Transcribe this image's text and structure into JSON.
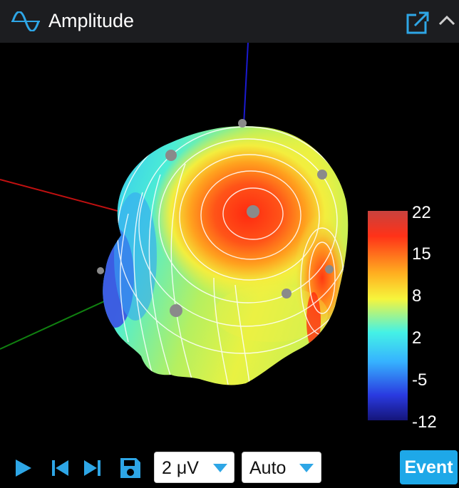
{
  "window": {
    "title": "Amplitude",
    "icon": "waveform-icon",
    "popout_icon": "external-link-icon",
    "collapse_icon": "chevron-up-icon"
  },
  "colorbar": {
    "labels": [
      "22",
      "15",
      "8",
      "2",
      "-5",
      "-12"
    ],
    "min": -12,
    "max": 22,
    "colors": [
      "#c83a3a",
      "#ff3b14",
      "#ffc21e",
      "#f6f53c",
      "#3ef0ec",
      "#3da8ff",
      "#2633d6",
      "#1a1a8c"
    ]
  },
  "toolbar": {
    "play_icon": "play-icon",
    "prev_icon": "skip-previous-icon",
    "next_icon": "skip-next-icon",
    "save_icon": "save-icon",
    "scale_select": "2 μV",
    "mode_select": "Auto",
    "event_label": "Event",
    "accent": "#1ea8e8"
  },
  "axes": {
    "z_color": "#1a1ad0",
    "x_color": "#c01010",
    "y_color": "#108010"
  }
}
